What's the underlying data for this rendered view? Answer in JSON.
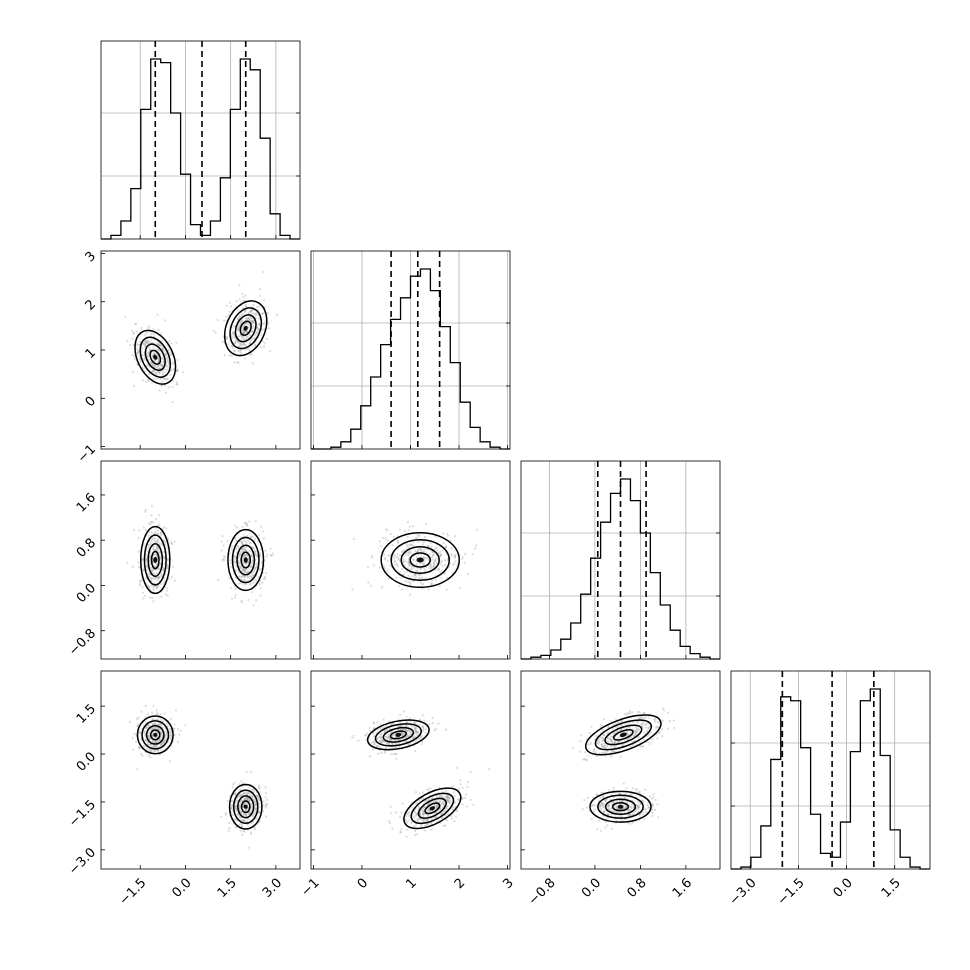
{
  "chart_data": {
    "type": "corner",
    "parameters": [
      "",
      "",
      "",
      ""
    ],
    "grid": true,
    "axes": [
      {
        "range": [
          -2.8,
          3.8
        ],
        "ticks": [
          -1.5,
          0.0,
          1.5,
          3.0
        ],
        "tick_labels": [
          "−1.5",
          "0.0",
          "1.5",
          "3.0"
        ]
      },
      {
        "range": [
          -1.05,
          3.05
        ],
        "ticks": [
          -1,
          0,
          1,
          2,
          3
        ],
        "tick_labels": [
          "−1",
          "0",
          "1",
          "2",
          "3"
        ]
      },
      {
        "range": [
          -1.3,
          2.2
        ],
        "ticks": [
          -0.8,
          0.0,
          0.8,
          1.6
        ],
        "tick_labels": [
          "−0.8",
          "0.0",
          "0.8",
          "1.6"
        ]
      },
      {
        "range": [
          -3.6,
          2.6
        ],
        "ticks": [
          -3.0,
          -1.5,
          0.0,
          1.5
        ],
        "tick_labels": [
          "−3.0",
          "−1.5",
          "0.0",
          "1.5"
        ]
      }
    ],
    "quantiles": [
      [
        -1.0,
        0.55,
        2.0
      ],
      [
        0.6,
        1.15,
        1.6
      ],
      [
        0.05,
        0.45,
        0.9
      ],
      [
        -2.0,
        -0.45,
        0.85
      ]
    ],
    "histograms": [
      {
        "bin_edges": [
          -2.8,
          -2.47,
          -2.14,
          -1.81,
          -1.48,
          -1.15,
          -0.82,
          -0.49,
          -0.16,
          0.17,
          0.5,
          0.83,
          1.16,
          1.49,
          1.82,
          2.15,
          2.48,
          2.81,
          3.14,
          3.47,
          3.8
        ],
        "counts": [
          0,
          2,
          10,
          28,
          72,
          100,
          98,
          70,
          36,
          8,
          2,
          10,
          34,
          72,
          100,
          94,
          56,
          14,
          2,
          0
        ]
      },
      {
        "bin_edges": [
          -1.05,
          -0.845,
          -0.64,
          -0.435,
          -0.23,
          -0.025,
          0.18,
          0.385,
          0.59,
          0.795,
          1.0,
          1.205,
          1.41,
          1.615,
          1.82,
          2.025,
          2.23,
          2.435,
          2.64,
          2.845,
          3.05
        ],
        "counts": [
          0,
          0,
          1,
          4,
          11,
          24,
          40,
          58,
          72,
          84,
          96,
          100,
          88,
          68,
          48,
          26,
          12,
          4,
          1,
          0
        ]
      },
      {
        "bin_edges": [
          -1.3,
          -1.125,
          -0.95,
          -0.775,
          -0.6,
          -0.425,
          -0.25,
          -0.075,
          0.1,
          0.275,
          0.45,
          0.625,
          0.8,
          0.975,
          1.15,
          1.325,
          1.5,
          1.675,
          1.85,
          2.025,
          2.2
        ],
        "counts": [
          0,
          1,
          2,
          5,
          11,
          20,
          36,
          56,
          76,
          92,
          100,
          88,
          70,
          48,
          30,
          16,
          7,
          3,
          1,
          0
        ]
      },
      {
        "bin_edges": [
          -3.6,
          -3.29,
          -2.98,
          -2.67,
          -2.36,
          -2.05,
          -1.74,
          -1.43,
          -1.12,
          -0.81,
          -0.5,
          -0.19,
          0.12,
          0.43,
          0.74,
          1.05,
          1.36,
          1.67,
          1.98,
          2.29,
          2.6
        ],
        "counts": [
          0,
          1,
          6,
          22,
          56,
          88,
          86,
          62,
          28,
          8,
          6,
          24,
          60,
          86,
          92,
          58,
          20,
          6,
          1,
          0
        ]
      }
    ],
    "clusters_2d": {
      "1,0": [
        {
          "center": [
            -1.0,
            0.85
          ],
          "spread": [
            0.55,
            0.55
          ],
          "tilt": -0.45
        },
        {
          "center": [
            2.0,
            1.45
          ],
          "spread": [
            0.6,
            0.55
          ],
          "tilt": 0.4
        }
      ],
      "2,0": [
        {
          "center": [
            -1.0,
            0.45
          ],
          "spread": [
            0.45,
            0.55
          ],
          "tilt": 0.0
        },
        {
          "center": [
            2.0,
            0.45
          ],
          "spread": [
            0.55,
            0.5
          ],
          "tilt": 0.0
        }
      ],
      "2,1": [
        {
          "center": [
            1.2,
            0.45
          ],
          "spread": [
            0.75,
            0.45
          ],
          "tilt": 0.0
        }
      ],
      "3,0": [
        {
          "center": [
            -1.0,
            0.6
          ],
          "spread": [
            0.55,
            0.55
          ],
          "tilt": 0.0
        },
        {
          "center": [
            2.0,
            -1.65
          ],
          "spread": [
            0.5,
            0.65
          ],
          "tilt": 0.0
        }
      ],
      "3,1": [
        {
          "center": [
            0.75,
            0.6
          ],
          "spread": [
            0.6,
            0.4
          ],
          "tilt": -0.2
        },
        {
          "center": [
            1.45,
            -1.7
          ],
          "spread": [
            0.6,
            0.45
          ],
          "tilt": -0.5
        }
      ],
      "3,2": [
        {
          "center": [
            0.5,
            0.6
          ],
          "spread": [
            0.65,
            0.45
          ],
          "tilt": -0.35
        },
        {
          "center": [
            0.45,
            -1.65
          ],
          "spread": [
            0.5,
            0.45
          ],
          "tilt": 0.0
        }
      ]
    }
  }
}
